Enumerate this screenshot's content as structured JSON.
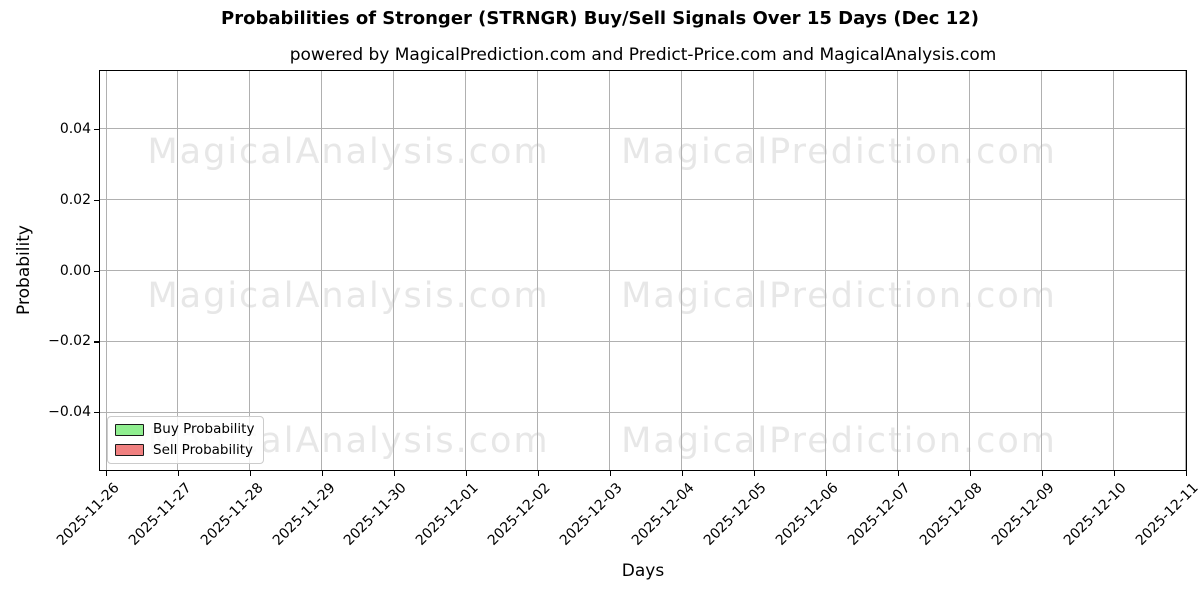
{
  "chart_data": {
    "type": "line",
    "title": "Probabilities of Stronger (STRNGR) Buy/Sell Signals Over 15 Days (Dec 12)",
    "subtitle": "powered by MagicalPrediction.com and Predict-Price.com and MagicalAnalysis.com",
    "xlabel": "Days",
    "ylabel": "Probability",
    "x_tick_labels": [
      "2025-11-26",
      "2025-11-27",
      "2025-11-28",
      "2025-11-29",
      "2025-11-30",
      "2025-12-01",
      "2025-12-02",
      "2025-12-03",
      "2025-12-04",
      "2025-12-05",
      "2025-12-06",
      "2025-12-07",
      "2025-12-08",
      "2025-12-09",
      "2025-12-10",
      "2025-12-11"
    ],
    "y_ticks": [
      {
        "value": 0.04,
        "label": "0.04"
      },
      {
        "value": 0.02,
        "label": "0.02"
      },
      {
        "value": 0.0,
        "label": "0.00"
      },
      {
        "value": -0.02,
        "label": "−0.02"
      },
      {
        "value": -0.04,
        "label": "−0.04"
      }
    ],
    "xlim": [
      -0.076,
      15.0
    ],
    "ylim": [
      -0.0562,
      0.0562
    ],
    "grid": true,
    "grid_color": "#b0b0b0",
    "legend": {
      "location": "lower left",
      "entries": [
        {
          "label": "Buy Probability",
          "fill": "#90ee90",
          "edge": "#1a1a1a"
        },
        {
          "label": "Sell Probability",
          "fill": "#f08080",
          "edge": "#1a1a1a"
        }
      ]
    },
    "series": [
      {
        "name": "Buy Probability",
        "color": "#90ee90",
        "values": []
      },
      {
        "name": "Sell Probability",
        "color": "#f08080",
        "values": []
      }
    ],
    "watermark": {
      "left_text": "MagicalAnalysis.com",
      "right_text": "MagicalPrediction.com",
      "color": "#e7e7e7"
    }
  }
}
